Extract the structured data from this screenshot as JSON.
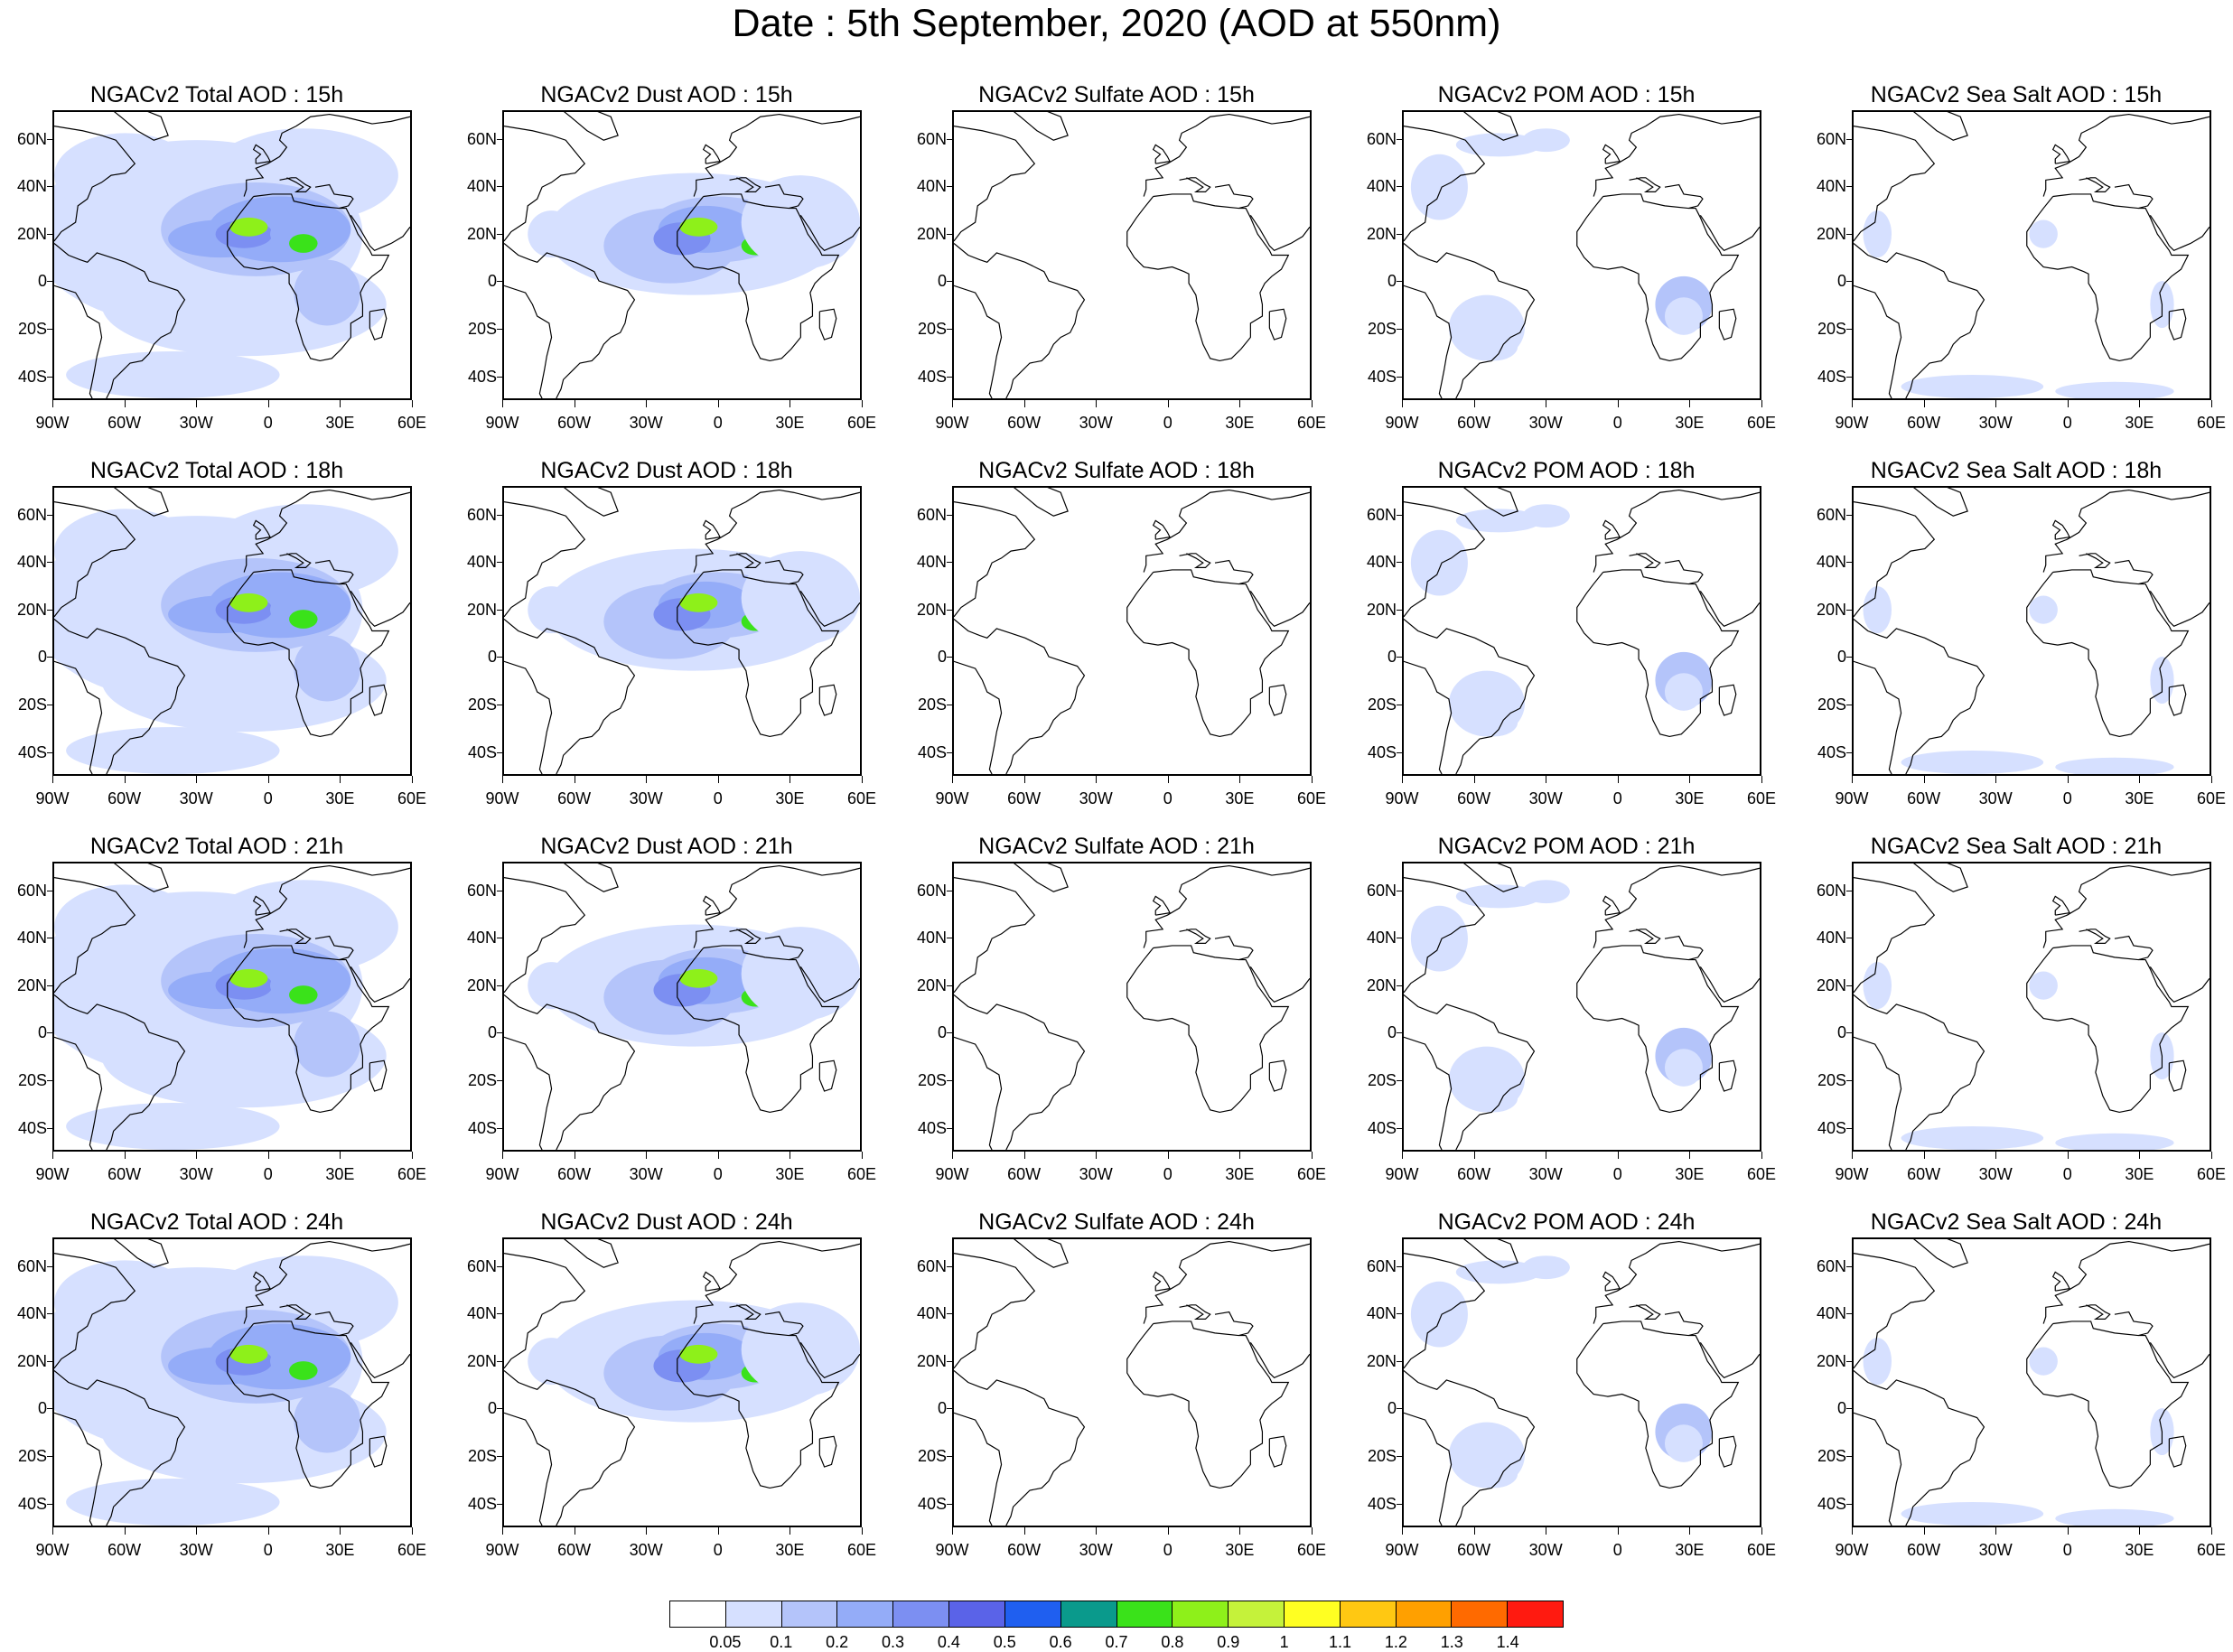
{
  "title": "Date : 5th September, 2020 (AOD at 550nm)",
  "map": {
    "lat_labels": [
      "60N",
      "40N",
      "20N",
      "0",
      "20S",
      "40S"
    ],
    "lat_values": [
      60,
      40,
      20,
      0,
      -20,
      -40
    ],
    "lon_labels": [
      "90W",
      "60W",
      "30W",
      "0",
      "30E",
      "60E"
    ],
    "lon_values": [
      -90,
      -60,
      -30,
      0,
      30,
      60
    ],
    "lat_range": [
      -50,
      72
    ],
    "lon_range": [
      -90,
      60
    ],
    "row_hours": [
      "15h",
      "18h",
      "21h",
      "24h"
    ],
    "panels": [
      {
        "title": "NGACv2 Total AOD : 15h",
        "species": "total"
      },
      {
        "title": "NGACv2 Dust AOD : 15h",
        "species": "dust"
      },
      {
        "title": "NGACv2 Sulfate AOD : 15h",
        "species": "sulfate"
      },
      {
        "title": "NGACv2 POM AOD : 15h",
        "species": "pom"
      },
      {
        "title": "NGACv2 Sea Salt AOD : 15h",
        "species": "seasalt"
      },
      {
        "title": "NGACv2 Total AOD : 18h",
        "species": "total"
      },
      {
        "title": "NGACv2 Dust AOD : 18h",
        "species": "dust"
      },
      {
        "title": "NGACv2 Sulfate AOD : 18h",
        "species": "sulfate"
      },
      {
        "title": "NGACv2 POM AOD : 18h",
        "species": "pom"
      },
      {
        "title": "NGACv2 Sea Salt AOD : 18h",
        "species": "seasalt"
      },
      {
        "title": "NGACv2 Total AOD : 21h",
        "species": "total"
      },
      {
        "title": "NGACv2 Dust AOD : 21h",
        "species": "dust"
      },
      {
        "title": "NGACv2 Sulfate AOD : 21h",
        "species": "sulfate"
      },
      {
        "title": "NGACv2 POM AOD : 21h",
        "species": "pom"
      },
      {
        "title": "NGACv2 Sea Salt AOD : 21h",
        "species": "seasalt"
      },
      {
        "title": "NGACv2 Total AOD : 24h",
        "species": "total"
      },
      {
        "title": "NGACv2 Dust AOD : 24h",
        "species": "dust"
      },
      {
        "title": "NGACv2 Sulfate AOD : 24h",
        "species": "sulfate"
      },
      {
        "title": "NGACv2 POM AOD : 24h",
        "species": "pom"
      },
      {
        "title": "NGACv2 Sea Salt  AOD : 24h",
        "species": "seasalt"
      }
    ]
  },
  "colorbar": {
    "labels": [
      "0.05",
      "0.1",
      "0.2",
      "0.3",
      "0.4",
      "0.5",
      "0.6",
      "0.7",
      "0.8",
      "0.9",
      "1",
      "1.1",
      "1.2",
      "1.3",
      "1.4"
    ],
    "colors": [
      "#ffffff",
      "#d6e0ff",
      "#b4c4fa",
      "#94acf8",
      "#7c8ff2",
      "#5a63e8",
      "#1f5ff0",
      "#0a9a8c",
      "#3ae21a",
      "#8ef01a",
      "#c5f23a",
      "#ffff22",
      "#ffc812",
      "#ffa000",
      "#ff6a00",
      "#ff1a10"
    ]
  }
}
